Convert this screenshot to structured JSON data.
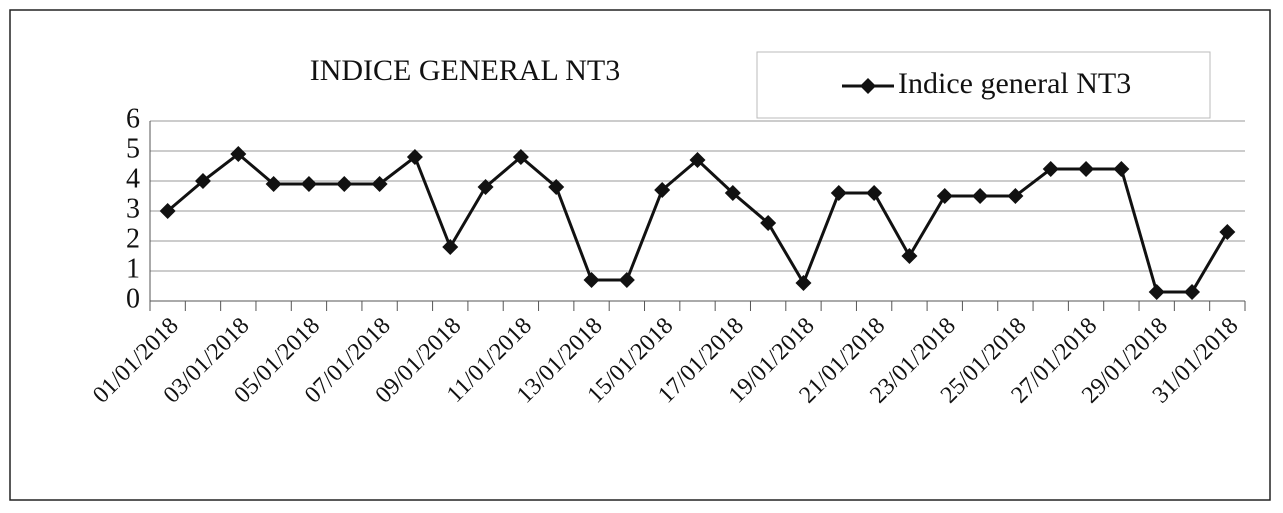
{
  "chart_data": {
    "type": "line",
    "title": "INDICE GENERAL NT3",
    "categories": [
      "01/01/2018",
      null,
      "03/01/2018",
      null,
      "05/01/2018",
      null,
      "07/01/2018",
      null,
      "09/01/2018",
      null,
      "11/01/2018",
      null,
      "13/01/2018",
      null,
      "15/01/2018",
      null,
      "17/01/2018",
      null,
      "19/01/2018",
      null,
      "21/01/2018",
      null,
      "23/01/2018",
      null,
      "25/01/2018",
      null,
      "27/01/2018",
      null,
      "29/01/2018",
      null,
      "31/01/2018"
    ],
    "series": [
      {
        "name": "Indice general NT3",
        "color": "#111111",
        "values": [
          3,
          4,
          4.9,
          3.9,
          3.9,
          3.9,
          3.9,
          4.8,
          1.8,
          3.8,
          4.8,
          3.8,
          0.7,
          0.7,
          3.7,
          4.7,
          3.6,
          2.6,
          0.6,
          3.6,
          3.6,
          1.5,
          3.5,
          3.5,
          3.5,
          4.4,
          4.4,
          4.4,
          0.3,
          0.3,
          2.3
        ]
      }
    ],
    "ylim": [
      0,
      6
    ],
    "yticks": [
      0,
      1,
      2,
      3,
      4,
      5,
      6
    ],
    "grid": true,
    "legend": "top-right"
  }
}
